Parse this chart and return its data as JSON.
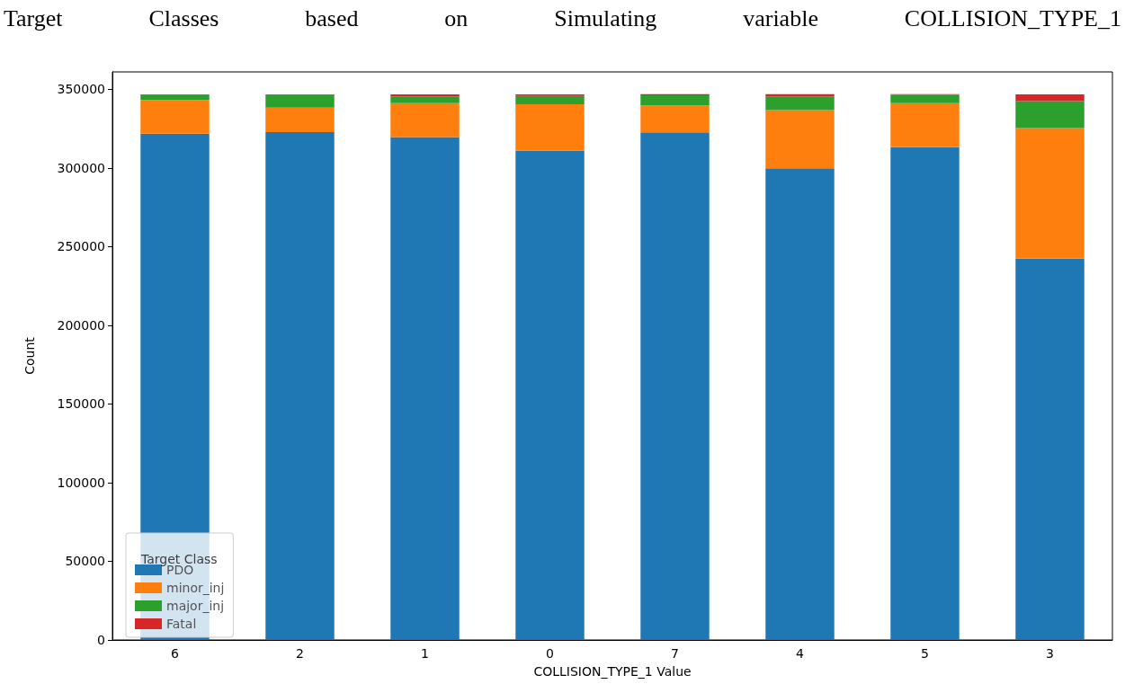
{
  "chart_data": {
    "type": "bar",
    "stacked": true,
    "title": "Target Classes based on Simulating variable COLLISION_TYPE_1",
    "xlabel": "COLLISION_TYPE_1 Value",
    "ylabel": "Count",
    "legend_title": "Target Class",
    "legend": "bottom left",
    "grid": false,
    "categories": [
      "6",
      "2",
      "1",
      "0",
      "7",
      "4",
      "5",
      "3"
    ],
    "ylim": [
      0,
      361000
    ],
    "yticks": [
      0,
      50000,
      100000,
      150000,
      200000,
      250000,
      300000,
      350000
    ],
    "series": [
      {
        "name": "PDO",
        "color": "#1f77b4",
        "values": [
          321800,
          322700,
          319600,
          311000,
          322600,
          299700,
          313100,
          242300
        ]
      },
      {
        "name": "minor_inj",
        "color": "#ff7f0e",
        "values": [
          21400,
          15600,
          21600,
          29400,
          17100,
          37000,
          28000,
          83000
        ]
      },
      {
        "name": "major_inj",
        "color": "#2ca02c",
        "values": [
          3100,
          8000,
          4300,
          5300,
          6500,
          8700,
          5300,
          17100
        ]
      },
      {
        "name": "Fatal",
        "color": "#d62728",
        "values": [
          400,
          400,
          1200,
          1000,
          600,
          1400,
          400,
          4300
        ]
      }
    ]
  }
}
